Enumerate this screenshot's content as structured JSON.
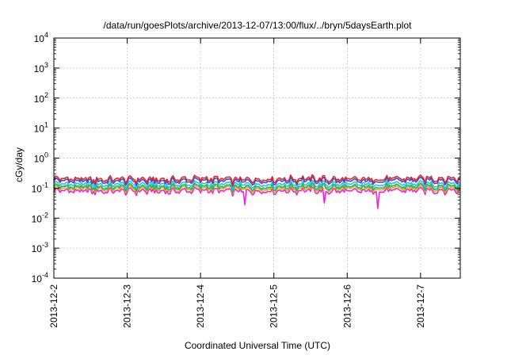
{
  "chart_data": {
    "type": "line",
    "title": "/data/run/goesPlots/archive/2013-12-07/13:00/flux/../bryn/5daysEarth.plot",
    "xlabel": "Coordinated Universal Time (UTC)",
    "ylabel": "cGy/day",
    "yscale": "log",
    "ylim": [
      0.0001,
      10000
    ],
    "xlim": [
      "2013-12-02",
      "2013-12-07 13:00"
    ],
    "x_ticks": [
      "2013-12-2",
      "2013-12-3",
      "2013-12-4",
      "2013-12-5",
      "2013-12-6",
      "2013-12-7"
    ],
    "y_ticks": [
      {
        "value": 0.0001,
        "base": "10",
        "exp": "-4"
      },
      {
        "value": 0.001,
        "base": "10",
        "exp": "-3"
      },
      {
        "value": 0.01,
        "base": "10",
        "exp": "-2"
      },
      {
        "value": 0.1,
        "base": "10",
        "exp": "-1"
      },
      {
        "value": 1,
        "base": "10",
        "exp": "0"
      },
      {
        "value": 10,
        "base": "10",
        "exp": "1"
      },
      {
        "value": 100,
        "base": "10",
        "exp": "2"
      },
      {
        "value": 1000,
        "base": "10",
        "exp": "3"
      },
      {
        "value": 10000,
        "base": "10",
        "exp": "4"
      }
    ],
    "grid": true,
    "x": [
      "2013-12-02 00:00",
      "2013-12-02 12:00",
      "2013-12-03 00:00",
      "2013-12-03 12:00",
      "2013-12-04 00:00",
      "2013-12-04 12:00",
      "2013-12-05 00:00",
      "2013-12-05 12:00",
      "2013-12-06 00:00",
      "2013-12-06 12:00",
      "2013-12-07 00:00",
      "2013-12-07 12:00"
    ],
    "series": [
      {
        "color": "#e8252f",
        "values": [
          0.22,
          0.2,
          0.21,
          0.2,
          0.22,
          0.2,
          0.21,
          0.22,
          0.2,
          0.21,
          0.22,
          0.22
        ]
      },
      {
        "color": "#2e4fe0",
        "values": [
          0.19,
          0.17,
          0.18,
          0.17,
          0.19,
          0.17,
          0.18,
          0.19,
          0.17,
          0.18,
          0.19,
          0.19
        ]
      },
      {
        "color": "#22c7d8",
        "values": [
          0.145,
          0.135,
          0.14,
          0.135,
          0.145,
          0.135,
          0.14,
          0.145,
          0.135,
          0.14,
          0.145,
          0.145
        ]
      },
      {
        "color": "#25b34a",
        "values": [
          0.12,
          0.11,
          0.115,
          0.11,
          0.12,
          0.11,
          0.115,
          0.12,
          0.11,
          0.115,
          0.12,
          0.12
        ]
      },
      {
        "color": "#f0a020",
        "values": [
          0.105,
          0.098,
          0.1,
          0.098,
          0.105,
          0.098,
          0.1,
          0.105,
          0.098,
          0.1,
          0.105,
          0.105
        ]
      },
      {
        "color": "#ee22dd",
        "values": [
          0.088,
          0.08,
          0.084,
          0.08,
          0.088,
          0.08,
          0.084,
          0.088,
          0.08,
          0.084,
          0.088,
          0.088
        ]
      }
    ],
    "dips": [
      {
        "x": "2013-12-04 14:20",
        "y": 0.028
      },
      {
        "x": "2013-12-05 16:30",
        "y": 0.032
      },
      {
        "x": "2013-12-06 09:50",
        "y": 0.021
      }
    ]
  }
}
